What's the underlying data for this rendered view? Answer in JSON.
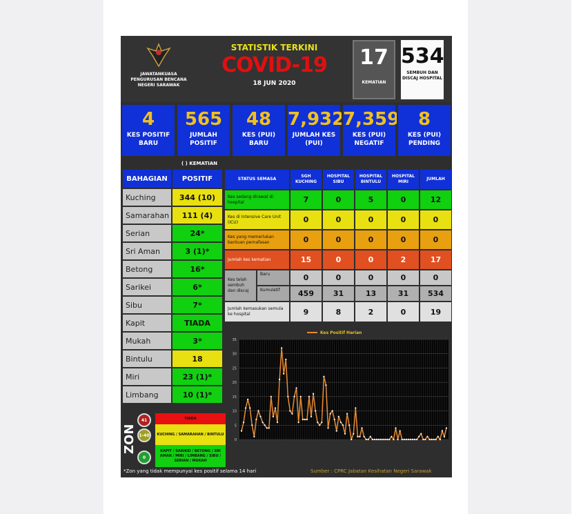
{
  "colors": {
    "blue": "#1030d8",
    "green": "#10d010",
    "yellow": "#e8e010",
    "orange": "#e8a010",
    "red": "#e05020",
    "gray": "#a8a8a8",
    "line": "#e88a30"
  },
  "header": {
    "org": "JAWATANKUASA PENGURUSAN BENCANA NEGERI SARAWAK",
    "title_top": "STATISTIK TERKINI",
    "title": "COVID-19",
    "date": "18 JUN 2020",
    "deaths": {
      "value": "17",
      "label": "KEMATIAN"
    },
    "recovered": {
      "value": "534",
      "label": "SEMBUH DAN DISCAJ HOSPITAL"
    }
  },
  "stats": [
    {
      "value": "4",
      "label": "KES POSITIF BARU"
    },
    {
      "value": "565",
      "label": "JUMLAH POSITIF"
    },
    {
      "value": "48",
      "label": "KES (PUI) BARU"
    },
    {
      "value": "7,932",
      "label": "JUMLAH KES (PUI)"
    },
    {
      "value": "7,359",
      "label": "KES (PUI) NEGATIF"
    },
    {
      "value": "8",
      "label": "KES (PUI) PENDING"
    }
  ],
  "kematian_note": "( ) KEMATIAN",
  "divisions": {
    "headers": [
      "BAHAGIAN",
      "POSITIF"
    ],
    "rows": [
      {
        "name": "Kuching",
        "value": "344 (10)",
        "zone": "yellow"
      },
      {
        "name": "Samarahan",
        "value": "111 (4)",
        "zone": "yellow"
      },
      {
        "name": "Serian",
        "value": "24*",
        "zone": "green"
      },
      {
        "name": "Sri Aman",
        "value": "3 (1)*",
        "zone": "green"
      },
      {
        "name": "Betong",
        "value": "16*",
        "zone": "green"
      },
      {
        "name": "Sarikei",
        "value": "6*",
        "zone": "green"
      },
      {
        "name": "Sibu",
        "value": "7*",
        "zone": "green"
      },
      {
        "name": "Kapit",
        "value": "TIADA",
        "zone": "green"
      },
      {
        "name": "Mukah",
        "value": "3*",
        "zone": "green"
      },
      {
        "name": "Bintulu",
        "value": "18",
        "zone": "yellow"
      },
      {
        "name": "Miri",
        "value": "23 (1)*",
        "zone": "green"
      },
      {
        "name": "Limbang",
        "value": "10 (1)*",
        "zone": "green"
      }
    ]
  },
  "status": {
    "headers": [
      "STATUS SEMASA",
      "SGH KUCHING",
      "HOSPITAL SIBU",
      "HOSPITAL BINTULU",
      "HOSPITAL MIRI",
      "JUMLAH"
    ],
    "rows": [
      {
        "label": "Kes sedang dirawat di hospital",
        "values": [
          "7",
          "0",
          "5",
          "0",
          "12"
        ],
        "color": "green"
      },
      {
        "label": "Kes di Intensive Care Unit (ICU)",
        "values": [
          "0",
          "0",
          "0",
          "0",
          "0"
        ],
        "color": "yellow"
      },
      {
        "label": "Kes yang memerlukan bantuan pernafasan",
        "values": [
          "0",
          "0",
          "0",
          "0",
          "0"
        ],
        "color": "orange"
      },
      {
        "label": "Jumlah kes kematian",
        "values": [
          "15",
          "0",
          "0",
          "2",
          "17"
        ],
        "color": "red"
      }
    ],
    "recovered_label": "Kes telah sembuh dan discaj",
    "baru_label": "Baru",
    "baru": [
      "0",
      "0",
      "0",
      "0",
      "0"
    ],
    "kumulatif_label": "Kumulatif",
    "kumulatif": [
      "459",
      "31",
      "13",
      "31",
      "534"
    ],
    "readmit": {
      "label": "Jumlah kemasukan semula ke hospital",
      "values": [
        "9",
        "8",
        "2",
        "0",
        "19"
      ]
    }
  },
  "chart_data": {
    "type": "line",
    "legend": "Kes Positif Harian",
    "legend_position": "top",
    "ylim": [
      0,
      35
    ],
    "yticks": [
      0,
      5,
      10,
      15,
      20,
      25,
      30,
      35
    ],
    "grid": true,
    "values": [
      3,
      6,
      11,
      14,
      11,
      5,
      1,
      7,
      10,
      8,
      6,
      5,
      4,
      4,
      15,
      8,
      11,
      6,
      21,
      32,
      23,
      28,
      15,
      10,
      9,
      15,
      18,
      6,
      15,
      7,
      7,
      7,
      15,
      8,
      16,
      10,
      6,
      5,
      6,
      22,
      19,
      4,
      9,
      10,
      7,
      3,
      8,
      6,
      5,
      2,
      9,
      5,
      0,
      2,
      11,
      1,
      1,
      4,
      1,
      0,
      0,
      1,
      0,
      0,
      0,
      0,
      0,
      0,
      0,
      0,
      0,
      1,
      0,
      4,
      0,
      3,
      0,
      0,
      0,
      0,
      0,
      0,
      0,
      0,
      1,
      2,
      0,
      0,
      1,
      0,
      0,
      0,
      0,
      1,
      0,
      3,
      1,
      4
    ]
  },
  "zone": {
    "title": "ZON",
    "levels": [
      {
        "range": "41",
        "areas": "TIADA",
        "color": "red"
      },
      {
        "range": "1-40",
        "areas": "KUCHING / SAMARAHAN / BINTULU",
        "color": "yellow"
      },
      {
        "range": "0",
        "areas": "KAPIT / SARIKEI / BETONG / SRI AMAN / MIRI / LIMBANG / SIBU / SERIAN / MUKAH",
        "color": "green"
      }
    ]
  },
  "footer": {
    "note": "*Zon yang tidak mempunyai kes positif selama 14 hari",
    "source": "Sumber : CPRC Jabatan Kesihatan Negeri Sarawak"
  }
}
